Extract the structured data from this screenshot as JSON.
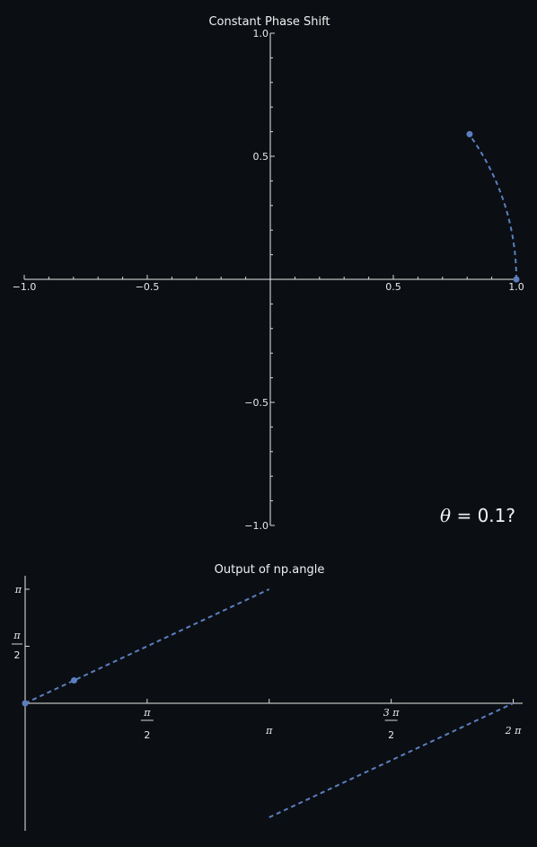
{
  "colors": {
    "background": "#0b0f14",
    "axis": "#e8e8e8",
    "series": "#5b7fbf"
  },
  "annotation": {
    "theta_symbol": "θ",
    "theta_rest": " = 0.1?"
  },
  "chart_data": [
    {
      "type": "line",
      "title": "Constant Phase Shift",
      "xlabel": "",
      "ylabel": "",
      "xlim": [
        -1.0,
        1.0
      ],
      "ylim": [
        -1.0,
        1.0
      ],
      "grid": false,
      "x_ticks": [
        "−1.0",
        "−0.5",
        "0.5",
        "1.0"
      ],
      "x_tick_values": [
        -1.0,
        -0.5,
        0.5,
        1.0
      ],
      "y_ticks": [
        "−1.0",
        "−0.5",
        "0.5",
        "1.0"
      ],
      "y_tick_values": [
        -1.0,
        -0.5,
        0.5,
        1.0
      ],
      "series": [
        {
          "style": "dashed",
          "curve": "unit-circle arc",
          "angle_range": [
            0,
            0.63
          ],
          "points": [
            {
              "x": 1.0,
              "y": 0.0
            },
            {
              "x": 0.81,
              "y": 0.59
            }
          ]
        }
      ]
    },
    {
      "type": "line",
      "title": "Output of np.angle",
      "xlabel": "",
      "ylabel": "",
      "xlim": [
        0,
        6.283185
      ],
      "ylim": [
        -3.1416,
        3.1416
      ],
      "grid": false,
      "x_ticks": [
        {
          "value": 1.5708,
          "num": "π",
          "den": "2"
        },
        {
          "value": 3.1416,
          "label": "π"
        },
        {
          "value": 4.7124,
          "num": "3 π",
          "den": "2"
        },
        {
          "value": 6.2832,
          "label": "2 π"
        }
      ],
      "y_ticks": [
        {
          "value": 1.5708,
          "num": "π",
          "den": "2"
        },
        {
          "value": 3.1416,
          "label": "π"
        }
      ],
      "series": [
        {
          "style": "dashed",
          "segments": [
            {
              "x": [
                0,
                3.1416
              ],
              "y": [
                0,
                3.1416
              ]
            },
            {
              "x": [
                3.1416,
                6.2832
              ],
              "y": [
                -3.1416,
                0
              ]
            }
          ],
          "points": [
            {
              "x": 0,
              "y": 0
            },
            {
              "x": 0.63,
              "y": 0.63
            }
          ]
        }
      ]
    }
  ]
}
